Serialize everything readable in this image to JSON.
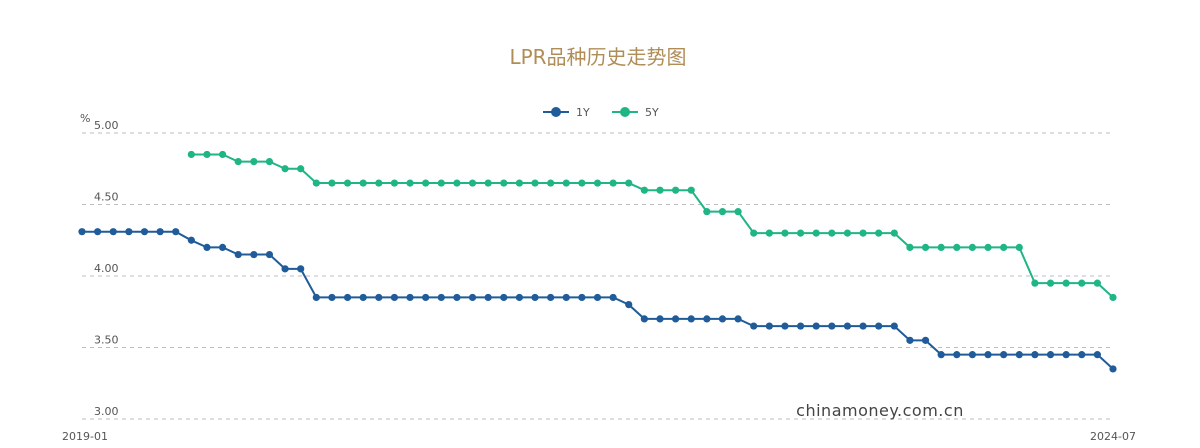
{
  "chart_data": {
    "type": "line",
    "title": "LPR品种历史走势图",
    "y_unit": "%",
    "ylim": [
      3.0,
      5.0
    ],
    "y_ticks": [
      "5.00",
      "4.50",
      "4.00",
      "3.50",
      "3.00"
    ],
    "x_tick_labels": [
      "2019-01",
      "2024-07"
    ],
    "x_range": [
      "2019-01",
      "2024-07"
    ],
    "grid": true,
    "legend_position": "top-center",
    "series": [
      {
        "name": "1Y",
        "color": "#1f5c99",
        "x": [
          "2019-01",
          "2019-02",
          "2019-03",
          "2019-04",
          "2019-05",
          "2019-06",
          "2019-07",
          "2019-08",
          "2019-09",
          "2019-10",
          "2019-11",
          "2019-12",
          "2020-01",
          "2020-02",
          "2020-03",
          "2020-04",
          "2020-05",
          "2020-06",
          "2020-07",
          "2020-08",
          "2020-09",
          "2020-10",
          "2020-11",
          "2020-12",
          "2021-01",
          "2021-02",
          "2021-03",
          "2021-04",
          "2021-05",
          "2021-06",
          "2021-07",
          "2021-08",
          "2021-09",
          "2021-10",
          "2021-11",
          "2021-12",
          "2022-01",
          "2022-02",
          "2022-03",
          "2022-04",
          "2022-05",
          "2022-06",
          "2022-07",
          "2022-08",
          "2022-09",
          "2022-10",
          "2022-11",
          "2022-12",
          "2023-01",
          "2023-02",
          "2023-03",
          "2023-04",
          "2023-05",
          "2023-06",
          "2023-07",
          "2023-08",
          "2023-09",
          "2023-10",
          "2023-11",
          "2023-12",
          "2024-01",
          "2024-02",
          "2024-03",
          "2024-04",
          "2024-05",
          "2024-06",
          "2024-07"
        ],
        "values": [
          4.31,
          4.31,
          4.31,
          4.31,
          4.31,
          4.31,
          4.31,
          4.25,
          4.2,
          4.2,
          4.15,
          4.15,
          4.15,
          4.05,
          4.05,
          3.85,
          3.85,
          3.85,
          3.85,
          3.85,
          3.85,
          3.85,
          3.85,
          3.85,
          3.85,
          3.85,
          3.85,
          3.85,
          3.85,
          3.85,
          3.85,
          3.85,
          3.85,
          3.85,
          3.85,
          3.8,
          3.7,
          3.7,
          3.7,
          3.7,
          3.7,
          3.7,
          3.7,
          3.65,
          3.65,
          3.65,
          3.65,
          3.65,
          3.65,
          3.65,
          3.65,
          3.65,
          3.65,
          3.55,
          3.55,
          3.45,
          3.45,
          3.45,
          3.45,
          3.45,
          3.45,
          3.45,
          3.45,
          3.45,
          3.45,
          3.45,
          3.35
        ]
      },
      {
        "name": "5Y",
        "color": "#1fb585",
        "x": [
          "2019-08",
          "2019-09",
          "2019-10",
          "2019-11",
          "2019-12",
          "2020-01",
          "2020-02",
          "2020-03",
          "2020-04",
          "2020-05",
          "2020-06",
          "2020-07",
          "2020-08",
          "2020-09",
          "2020-10",
          "2020-11",
          "2020-12",
          "2021-01",
          "2021-02",
          "2021-03",
          "2021-04",
          "2021-05",
          "2021-06",
          "2021-07",
          "2021-08",
          "2021-09",
          "2021-10",
          "2021-11",
          "2021-12",
          "2022-01",
          "2022-02",
          "2022-03",
          "2022-04",
          "2022-05",
          "2022-06",
          "2022-07",
          "2022-08",
          "2022-09",
          "2022-10",
          "2022-11",
          "2022-12",
          "2023-01",
          "2023-02",
          "2023-03",
          "2023-04",
          "2023-05",
          "2023-06",
          "2023-07",
          "2023-08",
          "2023-09",
          "2023-10",
          "2023-11",
          "2023-12",
          "2024-01",
          "2024-02",
          "2024-03",
          "2024-04",
          "2024-05",
          "2024-06",
          "2024-07"
        ],
        "values": [
          4.85,
          4.85,
          4.85,
          4.8,
          4.8,
          4.8,
          4.75,
          4.75,
          4.65,
          4.65,
          4.65,
          4.65,
          4.65,
          4.65,
          4.65,
          4.65,
          4.65,
          4.65,
          4.65,
          4.65,
          4.65,
          4.65,
          4.65,
          4.65,
          4.65,
          4.65,
          4.65,
          4.65,
          4.65,
          4.6,
          4.6,
          4.6,
          4.6,
          4.45,
          4.45,
          4.45,
          4.3,
          4.3,
          4.3,
          4.3,
          4.3,
          4.3,
          4.3,
          4.3,
          4.3,
          4.3,
          4.2,
          4.2,
          4.2,
          4.2,
          4.2,
          4.2,
          4.2,
          4.2,
          3.95,
          3.95,
          3.95,
          3.95,
          3.95,
          3.85
        ]
      }
    ]
  },
  "watermark": "chinamoney.com.cn"
}
